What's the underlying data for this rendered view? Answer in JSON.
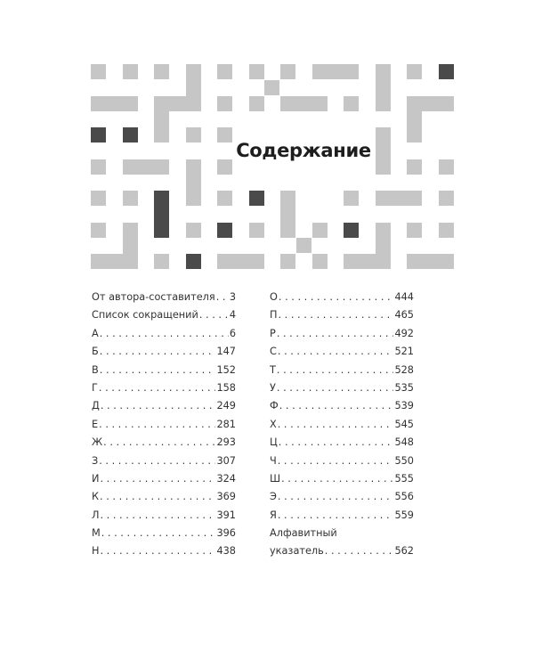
{
  "title": "Содержание",
  "toc": {
    "left": [
      {
        "label": "От автора-составителя",
        "page": "3"
      },
      {
        "label": "Список сокращений",
        "page": "4"
      },
      {
        "label": "А",
        "page": "6"
      },
      {
        "label": "Б",
        "page": "147"
      },
      {
        "label": "В",
        "page": "152"
      },
      {
        "label": "Г",
        "page": "158"
      },
      {
        "label": "Д",
        "page": "249"
      },
      {
        "label": "Е",
        "page": "281"
      },
      {
        "label": "Ж",
        "page": "293"
      },
      {
        "label": "З",
        "page": "307"
      },
      {
        "label": "И",
        "page": "324"
      },
      {
        "label": "К",
        "page": "369"
      },
      {
        "label": "Л",
        "page": "391"
      },
      {
        "label": "М",
        "page": "396"
      },
      {
        "label": "Н",
        "page": "438"
      }
    ],
    "right": [
      {
        "label": "О",
        "page": "444"
      },
      {
        "label": "П",
        "page": "465"
      },
      {
        "label": "Р",
        "page": "492"
      },
      {
        "label": "С",
        "page": "521"
      },
      {
        "label": "Т",
        "page": "528"
      },
      {
        "label": "У",
        "page": "535"
      },
      {
        "label": "Ф",
        "page": "539"
      },
      {
        "label": "Х",
        "page": "545"
      },
      {
        "label": "Ц",
        "page": "548"
      },
      {
        "label": "Ч",
        "page": "550"
      },
      {
        "label": "Ш",
        "page": "555"
      },
      {
        "label": "Э",
        "page": "556"
      },
      {
        "label": "Я",
        "page": "559"
      },
      {
        "label": "Алфавитный",
        "page": ""
      },
      {
        "label": "указатель",
        "page": "562"
      }
    ]
  },
  "colors": {
    "light_block": "#c6c6c6",
    "dark_block": "#4a4a4a",
    "text": "#333333"
  }
}
